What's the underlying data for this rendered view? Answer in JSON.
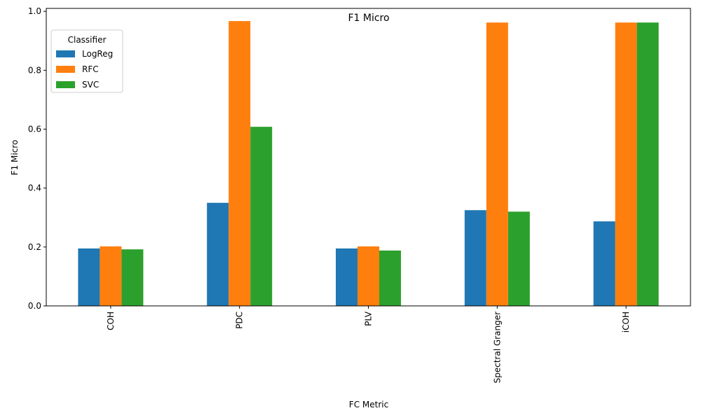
{
  "chart_data": {
    "type": "bar",
    "title": "F1 Micro",
    "xlabel": "FC Metric",
    "ylabel": "F1 Micro",
    "categories": [
      "COH",
      "PDC",
      "PLV",
      "Spectral Granger",
      "iCOH"
    ],
    "series": [
      {
        "name": "LogReg",
        "color": "#1f77b4",
        "values": [
          0.195,
          0.35,
          0.195,
          0.325,
          0.287
        ]
      },
      {
        "name": "RFC",
        "color": "#ff7f0e",
        "values": [
          0.202,
          0.967,
          0.202,
          0.962,
          0.962
        ]
      },
      {
        "name": "SVC",
        "color": "#2ca02c",
        "values": [
          0.192,
          0.608,
          0.188,
          0.32,
          0.962
        ]
      }
    ],
    "ylim": [
      0,
      1.01
    ],
    "yticks": [
      0.0,
      0.2,
      0.4,
      0.6,
      0.8,
      1.0
    ],
    "ytick_labels": [
      "0.0",
      "0.2",
      "0.4",
      "0.6",
      "0.8",
      "1.0"
    ],
    "legend": {
      "title": "Classifier",
      "position": "top-left"
    },
    "grid": false
  }
}
